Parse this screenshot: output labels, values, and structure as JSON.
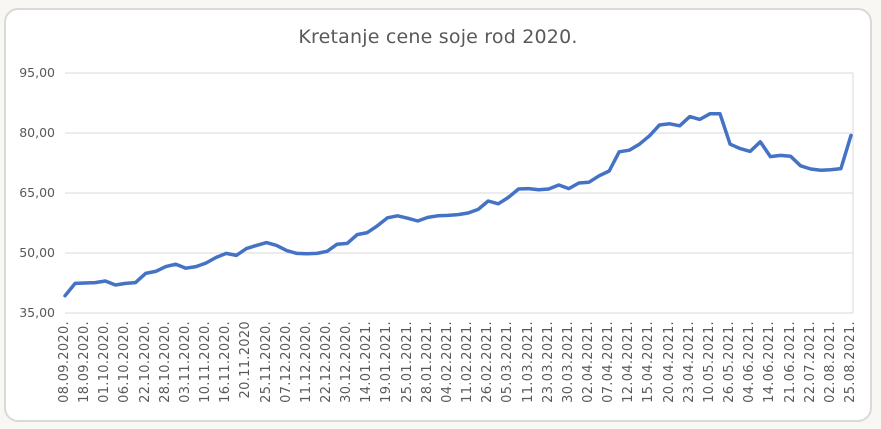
{
  "chart_data": {
    "type": "line",
    "title": "Kretanje cene soje rod 2020.",
    "legend": "none",
    "grid": true,
    "colors": {
      "line": "#4472C4",
      "gridline": "#D9D9D9",
      "axis_text": "#595959",
      "title_text": "#595959",
      "frame_border": "#D9D9D9",
      "background": "#FFFFFF"
    },
    "y_axis": {
      "min": 35,
      "max": 95,
      "ticks": [
        {
          "value": 95,
          "label": "95,00"
        },
        {
          "value": 80,
          "label": "80,00"
        },
        {
          "value": 65,
          "label": "65,00"
        },
        {
          "value": 50,
          "label": "50,00"
        },
        {
          "value": 35,
          "label": "35,00"
        }
      ]
    },
    "x_axis": {
      "label_rotation_degrees": 90,
      "label_every_n_points": 2,
      "labels": [
        "08.09.2020.",
        "18.09.2020.",
        "01.10.2020.",
        "06.10.2020.",
        "22.10.2020.",
        "28.10.2020.",
        "03.11.2020.",
        "10.11.2020.",
        "16.11.2020.",
        "20.11.2020",
        "25.11.2020.",
        "07.12.2020.",
        "11.12.2020.",
        "22.12.2020.",
        "30.12.2020.",
        "14.01.2021.",
        "19.01.2021.",
        "25.01.2021.",
        "28.01.2021.",
        "04.02.2021.",
        "11.02.2021.",
        "26.02.2021.",
        "05.03.2021.",
        "11.03.2021.",
        "23.03.2021.",
        "30.03.2021.",
        "02.04.2021.",
        "07.04.2021.",
        "12.04.2021.",
        "15.04.2021.",
        "20.04.2021.",
        "23.04.2021.",
        "10.05.2021.",
        "26.05.2021.",
        "04.06.2021.",
        "14.06.2021.",
        "21.06.2021.",
        "22.07.2021.",
        "02.08.2021.",
        "25.08.2021."
      ]
    },
    "series": [
      {
        "color": "#4472C4",
        "values": [
          39.3,
          42.4,
          42.5,
          42.6,
          43.0,
          42.0,
          42.4,
          42.6,
          44.9,
          45.4,
          46.6,
          47.2,
          46.2,
          46.6,
          47.5,
          48.9,
          49.9,
          49.4,
          51.1,
          51.9,
          52.6,
          51.9,
          50.6,
          49.9,
          49.8,
          49.9,
          50.4,
          52.2,
          52.4,
          54.6,
          55.1,
          56.8,
          58.8,
          59.3,
          58.7,
          58.0,
          58.9,
          59.3,
          59.4,
          59.6,
          60.0,
          60.9,
          63.0,
          62.3,
          63.9,
          66.0,
          66.1,
          65.8,
          66.0,
          67.0,
          66.1,
          67.5,
          67.7,
          69.3,
          70.5,
          75.3,
          75.7,
          77.2,
          79.3,
          82.0,
          82.3,
          81.8,
          84.1,
          83.4,
          84.8,
          84.8,
          77.2,
          76.1,
          75.4,
          77.8,
          74.1,
          74.4,
          74.2,
          71.8,
          71.0,
          70.7,
          70.8,
          71.1,
          79.4
        ]
      }
    ]
  }
}
